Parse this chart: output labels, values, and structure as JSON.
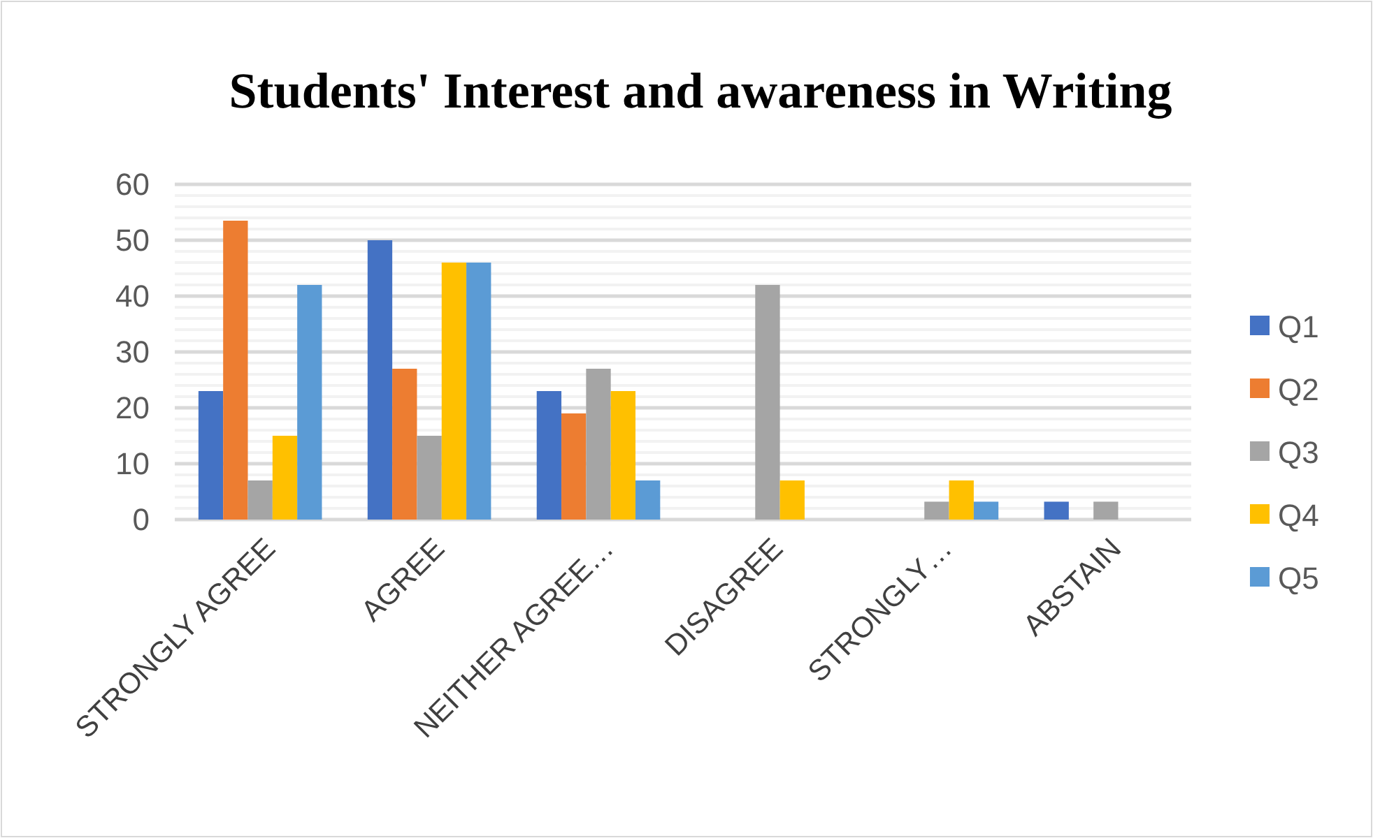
{
  "chart_data": {
    "type": "bar",
    "title": "Students' Interest and awareness in Writing",
    "categories": [
      "STRONGLY AGREE",
      "AGREE",
      "NEITHER AGREE…",
      "DISAGREE",
      "STRONGLY…",
      "ABSTAIN"
    ],
    "series": [
      {
        "name": "Q1",
        "color": "#4472c4",
        "values": [
          23,
          50,
          23,
          0,
          0,
          3.2
        ]
      },
      {
        "name": "Q2",
        "color": "#ed7d31",
        "values": [
          53.5,
          27,
          19,
          0,
          0,
          0
        ]
      },
      {
        "name": "Q3",
        "color": "#a5a5a5",
        "values": [
          7,
          15,
          27,
          42,
          3.2,
          3.2
        ]
      },
      {
        "name": "Q4",
        "color": "#ffc000",
        "values": [
          15,
          46,
          23,
          7,
          7,
          0
        ]
      },
      {
        "name": "Q5",
        "color": "#5b9bd5",
        "values": [
          42,
          46,
          7,
          0,
          3.2,
          0
        ]
      }
    ],
    "ylim": [
      0,
      60
    ],
    "yticks": [
      0,
      {
        "value": 2,
        "label": null
      },
      {
        "value": 4,
        "label": null
      },
      {
        "value": 6,
        "label": null
      },
      {
        "value": 8,
        "label": null
      },
      10,
      {
        "value": 12,
        "label": null
      },
      {
        "value": 14,
        "label": null
      },
      {
        "value": 16,
        "label": null
      },
      {
        "value": 18,
        "label": null
      },
      20,
      {
        "value": 22,
        "label": null
      },
      {
        "value": 24,
        "label": null
      },
      {
        "value": 26,
        "label": null
      },
      {
        "value": 28,
        "label": null
      },
      30,
      {
        "value": 32,
        "label": null
      },
      {
        "value": 34,
        "label": null
      },
      {
        "value": 36,
        "label": null
      },
      {
        "value": 38,
        "label": null
      },
      40,
      {
        "value": 42,
        "label": null
      },
      {
        "value": 44,
        "label": null
      },
      {
        "value": 46,
        "label": null
      },
      {
        "value": 48,
        "label": null
      },
      50,
      {
        "value": 52,
        "label": null
      },
      {
        "value": 54,
        "label": null
      },
      {
        "value": 56,
        "label": null
      },
      {
        "value": 58,
        "label": null
      },
      60
    ],
    "grid": true,
    "legend": "right"
  }
}
